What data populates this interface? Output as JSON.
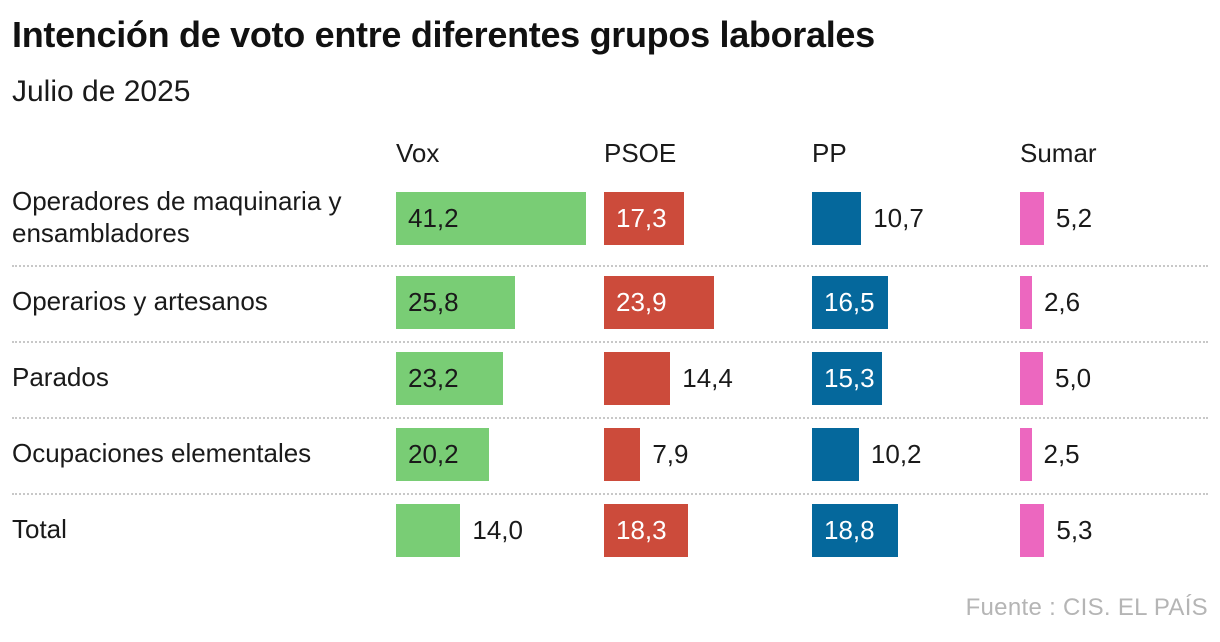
{
  "title": "Intención de voto entre diferentes grupos laborales",
  "subtitle": "Julio de 2025",
  "source": "Fuente : CIS. EL PAÍS",
  "colors": {
    "Vox": "#79cd75",
    "PSOE": "#cc4b3b",
    "PP": "#05689c",
    "Sumar": "#ec67bf"
  },
  "chart_data": {
    "type": "bar",
    "title": "Intención de voto entre diferentes grupos laborales",
    "subtitle": "Julio de 2025",
    "categories": [
      "Operadores de maquinaria y ensambladores",
      "Operarios y artesanos",
      "Parados",
      "Ocupaciones elementales",
      "Total"
    ],
    "category_lines": [
      [
        "Operadores de maquinaria y",
        "ensambladores"
      ],
      [
        "Operarios y artesanos"
      ],
      [
        "Parados"
      ],
      [
        "Ocupaciones elementales"
      ],
      [
        "Total"
      ]
    ],
    "series": [
      {
        "name": "Vox",
        "values": [
          41.2,
          25.8,
          23.2,
          20.2,
          14.0
        ],
        "labels": [
          "41,2",
          "25,8",
          "23,2",
          "20,2",
          "14,0"
        ]
      },
      {
        "name": "PSOE",
        "values": [
          17.3,
          23.9,
          14.4,
          7.9,
          18.3
        ],
        "labels": [
          "17,3",
          "23,9",
          "14,4",
          "7,9",
          "18,3"
        ]
      },
      {
        "name": "PP",
        "values": [
          10.7,
          16.5,
          15.3,
          10.2,
          18.8
        ],
        "labels": [
          "10,7",
          "16,5",
          "15,3",
          "10,2",
          "18,8"
        ]
      },
      {
        "name": "Sumar",
        "values": [
          5.2,
          2.6,
          5.0,
          2.5,
          5.3
        ],
        "labels": [
          "5,2",
          "2,6",
          "5,0",
          "2,5",
          "5,3"
        ]
      }
    ],
    "source": "Fuente : CIS. EL PAÍS"
  }
}
